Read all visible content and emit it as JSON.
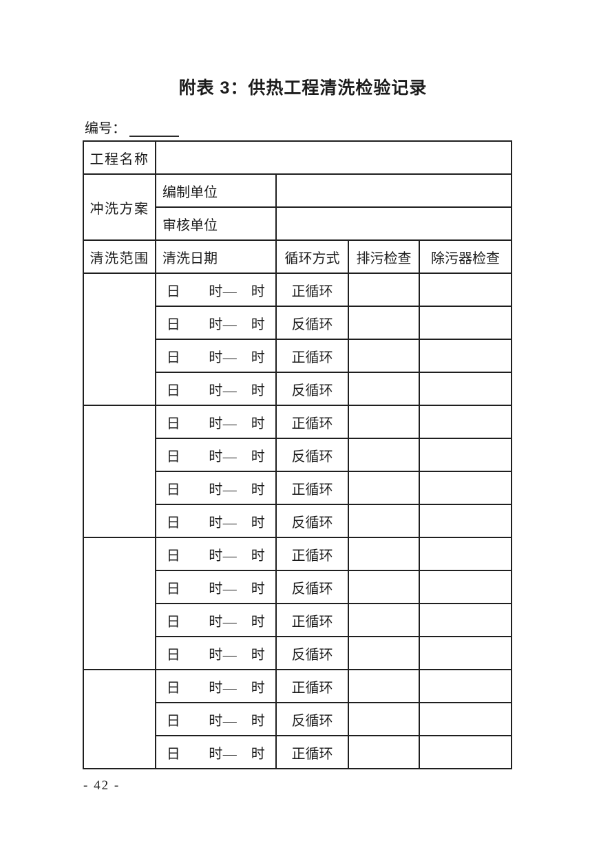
{
  "document": {
    "title": "附表 3：供热工程清洗检验记录",
    "serial_label": "编号：",
    "serial_value": "",
    "page_number": "- 42 -"
  },
  "table": {
    "project_name_label": "工程名称",
    "project_name_value": "",
    "flush_plan_label": "冲洗方案",
    "compile_unit_label": "编制单位",
    "compile_unit_value": "",
    "review_unit_label": "审核单位",
    "review_unit_value": "",
    "headers": {
      "scope": "清洗范围",
      "date": "清洗日期",
      "cycle": "循环方式",
      "blowdown": "排污检查",
      "strainer": "除污器检查"
    },
    "date_cell_text": "日　　时—　时",
    "groups": [
      {
        "scope_value": "",
        "rows": [
          "正循环",
          "反循环",
          "正循环",
          "反循环"
        ]
      },
      {
        "scope_value": "",
        "rows": [
          "正循环",
          "反循环",
          "正循环",
          "反循环"
        ]
      },
      {
        "scope_value": "",
        "rows": [
          "正循环",
          "反循环",
          "正循环",
          "反循环"
        ]
      },
      {
        "scope_value": "",
        "rows": [
          "正循环",
          "反循环",
          "正循环"
        ]
      }
    ]
  }
}
